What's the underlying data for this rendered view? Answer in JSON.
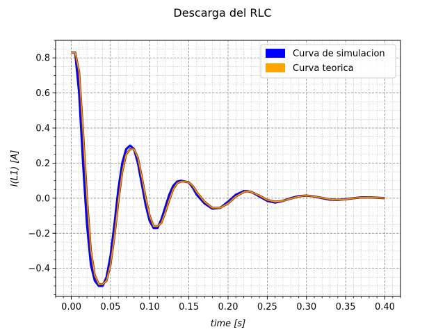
{
  "chart_data": {
    "type": "line",
    "title": "Descarga del RLC",
    "xlabel": "time [s]",
    "ylabel": "I(L1) [A]",
    "xlim": [
      -0.02,
      0.42
    ],
    "ylim": [
      -0.56,
      0.9
    ],
    "xticks": [
      0.0,
      0.05,
      0.1,
      0.15,
      0.2,
      0.25,
      0.3,
      0.35,
      0.4
    ],
    "xtick_labels": [
      "0.00",
      "0.05",
      "0.10",
      "0.15",
      "0.20",
      "0.25",
      "0.30",
      "0.35",
      "0.40"
    ],
    "yticks": [
      -0.4,
      -0.2,
      0.0,
      0.2,
      0.4,
      0.6,
      0.8
    ],
    "ytick_labels": [
      "−0.4",
      "−0.2",
      "0.0",
      "0.2",
      "0.4",
      "0.6",
      "0.8"
    ],
    "grid": true,
    "legend_position": "top-right",
    "series": [
      {
        "name": "Curva de simulacion",
        "color": "#0000ff",
        "x": [
          0.0,
          0.005,
          0.01,
          0.015,
          0.02,
          0.025,
          0.03,
          0.035,
          0.04,
          0.045,
          0.05,
          0.055,
          0.06,
          0.065,
          0.07,
          0.075,
          0.08,
          0.085,
          0.09,
          0.095,
          0.1,
          0.105,
          0.11,
          0.115,
          0.12,
          0.125,
          0.13,
          0.135,
          0.14,
          0.145,
          0.15,
          0.155,
          0.16,
          0.17,
          0.18,
          0.19,
          0.2,
          0.21,
          0.22,
          0.225,
          0.23,
          0.24,
          0.25,
          0.26,
          0.27,
          0.28,
          0.29,
          0.3,
          0.31,
          0.32,
          0.33,
          0.34,
          0.35,
          0.36,
          0.37,
          0.38,
          0.39,
          0.4
        ],
        "y": [
          0.83,
          0.83,
          0.6,
          0.2,
          -0.15,
          -0.38,
          -0.47,
          -0.5,
          -0.5,
          -0.45,
          -0.33,
          -0.15,
          0.05,
          0.2,
          0.28,
          0.3,
          0.28,
          0.2,
          0.08,
          -0.04,
          -0.13,
          -0.17,
          -0.17,
          -0.12,
          -0.05,
          0.02,
          0.07,
          0.095,
          0.1,
          0.095,
          0.09,
          0.06,
          0.02,
          -0.03,
          -0.06,
          -0.055,
          -0.02,
          0.02,
          0.04,
          0.04,
          0.035,
          0.01,
          -0.015,
          -0.025,
          -0.015,
          0.0,
          0.012,
          0.015,
          0.01,
          0.0,
          -0.008,
          -0.01,
          -0.005,
          0.0,
          0.005,
          0.005,
          0.003,
          0.0
        ]
      },
      {
        "name": "Curva teorica",
        "color": "#ffa500",
        "x": [
          0.0,
          0.005,
          0.01,
          0.015,
          0.02,
          0.025,
          0.03,
          0.035,
          0.04,
          0.045,
          0.05,
          0.055,
          0.06,
          0.065,
          0.07,
          0.075,
          0.08,
          0.085,
          0.09,
          0.095,
          0.1,
          0.105,
          0.11,
          0.115,
          0.12,
          0.125,
          0.13,
          0.135,
          0.14,
          0.145,
          0.15,
          0.155,
          0.16,
          0.17,
          0.18,
          0.19,
          0.2,
          0.21,
          0.22,
          0.225,
          0.23,
          0.24,
          0.25,
          0.26,
          0.27,
          0.28,
          0.29,
          0.3,
          0.31,
          0.32,
          0.33,
          0.34,
          0.35,
          0.36,
          0.37,
          0.38,
          0.39,
          0.4
        ],
        "y": [
          0.83,
          0.83,
          0.72,
          0.38,
          0.0,
          -0.3,
          -0.44,
          -0.49,
          -0.49,
          -0.47,
          -0.38,
          -0.22,
          -0.02,
          0.15,
          0.25,
          0.28,
          0.28,
          0.23,
          0.12,
          0.0,
          -0.1,
          -0.16,
          -0.16,
          -0.14,
          -0.08,
          -0.01,
          0.05,
          0.085,
          0.095,
          0.095,
          0.09,
          0.07,
          0.035,
          -0.02,
          -0.055,
          -0.055,
          -0.03,
          0.01,
          0.035,
          0.04,
          0.035,
          0.015,
          -0.01,
          -0.02,
          -0.015,
          -0.003,
          0.01,
          0.015,
          0.01,
          0.002,
          -0.006,
          -0.009,
          -0.006,
          0.0,
          0.004,
          0.005,
          0.003,
          0.0
        ]
      }
    ]
  }
}
